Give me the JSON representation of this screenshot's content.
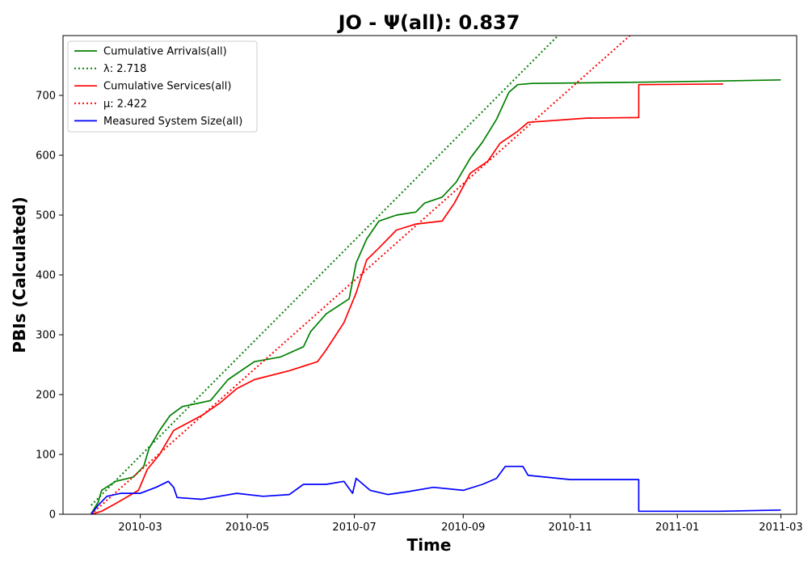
{
  "chart_data": {
    "type": "line",
    "title": "JO -  Ψ(all): 0.837",
    "xlabel": "Time",
    "ylabel": "PBIs (Calculated)",
    "x_range": [
      "2010-01-16",
      "2011-03-10"
    ],
    "ylim": [
      0,
      800
    ],
    "x_ticks": [
      "2010-03",
      "2010-05",
      "2010-07",
      "2010-09",
      "2010-11",
      "2011-01",
      "2011-03"
    ],
    "y_ticks": [
      0,
      100,
      200,
      300,
      400,
      500,
      600,
      700
    ],
    "grid": false,
    "legend_position": "upper-left",
    "series": [
      {
        "name": "Cumulative Arrivals(all)",
        "color": "#008000",
        "style": "solid",
        "points": [
          [
            "2010-02-01",
            1
          ],
          [
            "2010-02-05",
            20
          ],
          [
            "2010-02-07",
            40
          ],
          [
            "2010-02-15",
            55
          ],
          [
            "2010-02-25",
            62
          ],
          [
            "2010-03-03",
            80
          ],
          [
            "2010-03-06",
            110
          ],
          [
            "2010-03-12",
            140
          ],
          [
            "2010-03-18",
            165
          ],
          [
            "2010-03-25",
            180
          ],
          [
            "2010-04-10",
            190
          ],
          [
            "2010-04-20",
            225
          ],
          [
            "2010-05-05",
            255
          ],
          [
            "2010-05-20",
            263
          ],
          [
            "2010-06-02",
            280
          ],
          [
            "2010-06-06",
            305
          ],
          [
            "2010-06-15",
            335
          ],
          [
            "2010-06-28",
            360
          ],
          [
            "2010-07-02",
            420
          ],
          [
            "2010-07-08",
            460
          ],
          [
            "2010-07-15",
            490
          ],
          [
            "2010-07-25",
            500
          ],
          [
            "2010-08-05",
            505
          ],
          [
            "2010-08-10",
            520
          ],
          [
            "2010-08-20",
            530
          ],
          [
            "2010-08-28",
            555
          ],
          [
            "2010-09-05",
            595
          ],
          [
            "2010-09-12",
            622
          ],
          [
            "2010-09-20",
            660
          ],
          [
            "2010-09-27",
            705
          ],
          [
            "2010-10-02",
            718
          ],
          [
            "2010-10-10",
            720
          ],
          [
            "2010-12-10",
            722
          ],
          [
            "2011-01-25",
            724
          ],
          [
            "2011-03-01",
            726
          ]
        ]
      },
      {
        "name": "λ: 2.718",
        "color": "#008000",
        "style": "dotted",
        "points": [
          [
            "2010-02-01",
            15
          ],
          [
            "2010-10-25",
            800
          ]
        ]
      },
      {
        "name": "Cumulative Services(all)",
        "color": "#ff0000",
        "style": "solid",
        "points": [
          [
            "2010-02-01",
            0
          ],
          [
            "2010-02-07",
            5
          ],
          [
            "2010-02-15",
            18
          ],
          [
            "2010-02-28",
            40
          ],
          [
            "2010-03-05",
            75
          ],
          [
            "2010-03-12",
            100
          ],
          [
            "2010-03-20",
            140
          ],
          [
            "2010-04-05",
            165
          ],
          [
            "2010-04-15",
            185
          ],
          [
            "2010-04-25",
            210
          ],
          [
            "2010-05-05",
            225
          ],
          [
            "2010-05-25",
            240
          ],
          [
            "2010-06-10",
            255
          ],
          [
            "2010-06-15",
            275
          ],
          [
            "2010-06-25",
            320
          ],
          [
            "2010-07-02",
            370
          ],
          [
            "2010-07-08",
            425
          ],
          [
            "2010-07-15",
            445
          ],
          [
            "2010-07-25",
            475
          ],
          [
            "2010-08-05",
            485
          ],
          [
            "2010-08-20",
            490
          ],
          [
            "2010-08-27",
            520
          ],
          [
            "2010-09-05",
            570
          ],
          [
            "2010-09-15",
            590
          ],
          [
            "2010-09-22",
            620
          ],
          [
            "2010-10-02",
            640
          ],
          [
            "2010-10-08",
            655
          ],
          [
            "2010-11-10",
            662
          ],
          [
            "2010-12-10",
            663
          ],
          [
            "2010-12-10",
            718
          ],
          [
            "2011-01-27",
            719
          ]
        ]
      },
      {
        "name": "μ: 2.422",
        "color": "#ff0000",
        "style": "dotted",
        "points": [
          [
            "2010-02-01",
            0
          ],
          [
            "2010-12-05",
            800
          ]
        ]
      },
      {
        "name": "Measured System Size(all)",
        "color": "#0000ff",
        "style": "solid",
        "points": [
          [
            "2010-02-01",
            0
          ],
          [
            "2010-02-05",
            15
          ],
          [
            "2010-02-10",
            30
          ],
          [
            "2010-02-18",
            35
          ],
          [
            "2010-03-01",
            35
          ],
          [
            "2010-03-10",
            45
          ],
          [
            "2010-03-17",
            55
          ],
          [
            "2010-03-20",
            45
          ],
          [
            "2010-03-22",
            28
          ],
          [
            "2010-04-05",
            25
          ],
          [
            "2010-04-15",
            30
          ],
          [
            "2010-04-25",
            35
          ],
          [
            "2010-05-10",
            30
          ],
          [
            "2010-05-25",
            33
          ],
          [
            "2010-06-02",
            50
          ],
          [
            "2010-06-15",
            50
          ],
          [
            "2010-06-25",
            55
          ],
          [
            "2010-06-30",
            35
          ],
          [
            "2010-07-02",
            60
          ],
          [
            "2010-07-10",
            40
          ],
          [
            "2010-07-20",
            33
          ],
          [
            "2010-08-01",
            38
          ],
          [
            "2010-08-15",
            45
          ],
          [
            "2010-09-01",
            40
          ],
          [
            "2010-09-12",
            50
          ],
          [
            "2010-09-20",
            60
          ],
          [
            "2010-09-25",
            80
          ],
          [
            "2010-10-05",
            80
          ],
          [
            "2010-10-08",
            65
          ],
          [
            "2010-11-01",
            58
          ],
          [
            "2010-12-10",
            58
          ],
          [
            "2010-12-10",
            5
          ],
          [
            "2011-01-25",
            5
          ],
          [
            "2011-03-01",
            7
          ]
        ]
      }
    ]
  }
}
